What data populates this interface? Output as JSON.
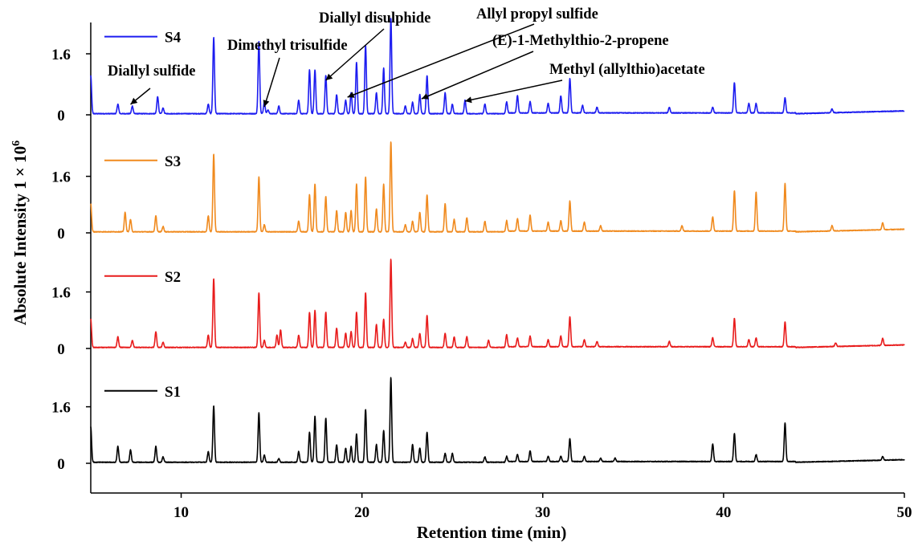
{
  "chart_data": {
    "type": "line",
    "xlabel": "Retention time (min)",
    "ylabel": "Absolute Intensity 1 × 10",
    "ylabel_superscript": "6",
    "xlim": [
      5,
      50
    ],
    "xticks": [
      "10",
      "20",
      "30",
      "40",
      "50"
    ],
    "yticks_per_panel": [
      "0",
      "1.6"
    ],
    "grid": false,
    "legend_placement": "top-left of each panel",
    "colors": {
      "S1": "#000000",
      "S2": "#e81c1c",
      "S3": "#f08a1e",
      "S4": "#1c1cf0"
    },
    "series": [
      {
        "name": "S4",
        "peaks": [
          [
            5.0,
            1.0
          ],
          [
            6.5,
            0.25
          ],
          [
            7.3,
            0.2
          ],
          [
            8.7,
            0.45
          ],
          [
            9.0,
            0.15
          ],
          [
            11.5,
            0.25
          ],
          [
            11.8,
            2.0
          ],
          [
            14.3,
            1.9
          ],
          [
            14.6,
            0.3
          ],
          [
            14.8,
            0.1
          ],
          [
            15.4,
            0.2
          ],
          [
            16.5,
            0.35
          ],
          [
            17.1,
            1.15
          ],
          [
            17.4,
            1.15
          ],
          [
            18.0,
            1.0
          ],
          [
            18.6,
            0.5
          ],
          [
            19.1,
            0.35
          ],
          [
            19.4,
            0.55
          ],
          [
            19.7,
            1.35
          ],
          [
            20.2,
            1.8
          ],
          [
            20.8,
            0.55
          ],
          [
            21.2,
            1.2
          ],
          [
            21.6,
            2.5
          ],
          [
            22.4,
            0.2
          ],
          [
            22.8,
            0.3
          ],
          [
            23.2,
            0.5
          ],
          [
            23.6,
            1.0
          ],
          [
            24.6,
            0.55
          ],
          [
            25.0,
            0.25
          ],
          [
            25.7,
            0.35
          ],
          [
            26.8,
            0.25
          ],
          [
            28.0,
            0.3
          ],
          [
            28.6,
            0.45
          ],
          [
            29.3,
            0.3
          ],
          [
            30.3,
            0.25
          ],
          [
            31.0,
            0.45
          ],
          [
            31.5,
            0.9
          ],
          [
            32.2,
            0.2
          ],
          [
            33.0,
            0.15
          ],
          [
            37.0,
            0.15
          ],
          [
            39.4,
            0.15
          ],
          [
            40.6,
            0.8
          ],
          [
            41.4,
            0.25
          ],
          [
            41.8,
            0.25
          ],
          [
            43.4,
            0.4
          ],
          [
            46.0,
            0.1
          ]
        ]
      },
      {
        "name": "S3",
        "peaks": [
          [
            5.0,
            0.8
          ],
          [
            6.9,
            0.55
          ],
          [
            7.2,
            0.35
          ],
          [
            8.6,
            0.45
          ],
          [
            9.0,
            0.15
          ],
          [
            11.5,
            0.45
          ],
          [
            11.8,
            2.2
          ],
          [
            14.3,
            1.55
          ],
          [
            14.6,
            0.2
          ],
          [
            16.5,
            0.3
          ],
          [
            17.1,
            1.05
          ],
          [
            17.4,
            1.35
          ],
          [
            18.0,
            1.0
          ],
          [
            18.6,
            0.6
          ],
          [
            19.1,
            0.55
          ],
          [
            19.4,
            0.6
          ],
          [
            19.7,
            1.35
          ],
          [
            20.2,
            1.55
          ],
          [
            20.8,
            0.65
          ],
          [
            21.2,
            1.35
          ],
          [
            21.6,
            2.55
          ],
          [
            22.4,
            0.2
          ],
          [
            22.8,
            0.3
          ],
          [
            23.2,
            0.55
          ],
          [
            23.6,
            1.05
          ],
          [
            24.6,
            0.8
          ],
          [
            25.1,
            0.35
          ],
          [
            25.8,
            0.4
          ],
          [
            26.8,
            0.3
          ],
          [
            28.0,
            0.3
          ],
          [
            28.6,
            0.35
          ],
          [
            29.3,
            0.45
          ],
          [
            30.3,
            0.25
          ],
          [
            31.0,
            0.3
          ],
          [
            31.5,
            0.85
          ],
          [
            32.3,
            0.25
          ],
          [
            33.2,
            0.15
          ],
          [
            37.7,
            0.15
          ],
          [
            39.4,
            0.4
          ],
          [
            40.6,
            1.15
          ],
          [
            41.8,
            1.1
          ],
          [
            43.4,
            1.35
          ],
          [
            46.0,
            0.15
          ],
          [
            48.8,
            0.2
          ]
        ]
      },
      {
        "name": "S2",
        "peaks": [
          [
            5.0,
            0.8
          ],
          [
            6.5,
            0.3
          ],
          [
            7.3,
            0.2
          ],
          [
            8.6,
            0.45
          ],
          [
            9.0,
            0.15
          ],
          [
            11.5,
            0.35
          ],
          [
            11.8,
            1.95
          ],
          [
            14.3,
            1.55
          ],
          [
            14.6,
            0.2
          ],
          [
            15.3,
            0.35
          ],
          [
            15.5,
            0.5
          ],
          [
            16.5,
            0.35
          ],
          [
            17.1,
            1.0
          ],
          [
            17.4,
            1.05
          ],
          [
            18.0,
            1.0
          ],
          [
            18.6,
            0.55
          ],
          [
            19.1,
            0.4
          ],
          [
            19.4,
            0.45
          ],
          [
            19.7,
            1.0
          ],
          [
            20.2,
            1.55
          ],
          [
            20.8,
            0.65
          ],
          [
            21.2,
            0.8
          ],
          [
            21.6,
            2.5
          ],
          [
            22.4,
            0.15
          ],
          [
            22.8,
            0.25
          ],
          [
            23.2,
            0.4
          ],
          [
            23.6,
            0.9
          ],
          [
            24.6,
            0.4
          ],
          [
            25.1,
            0.3
          ],
          [
            25.8,
            0.3
          ],
          [
            27.0,
            0.2
          ],
          [
            28.0,
            0.35
          ],
          [
            28.6,
            0.25
          ],
          [
            29.3,
            0.3
          ],
          [
            30.3,
            0.2
          ],
          [
            31.0,
            0.3
          ],
          [
            31.5,
            0.85
          ],
          [
            32.3,
            0.2
          ],
          [
            33.0,
            0.15
          ],
          [
            37.0,
            0.15
          ],
          [
            39.4,
            0.25
          ],
          [
            40.6,
            0.8
          ],
          [
            41.4,
            0.2
          ],
          [
            41.8,
            0.25
          ],
          [
            43.4,
            0.7
          ],
          [
            46.2,
            0.1
          ],
          [
            48.8,
            0.2
          ]
        ]
      },
      {
        "name": "S1",
        "peaks": [
          [
            5.0,
            1.0
          ],
          [
            6.5,
            0.45
          ],
          [
            7.2,
            0.35
          ],
          [
            8.6,
            0.45
          ],
          [
            9.0,
            0.15
          ],
          [
            11.5,
            0.3
          ],
          [
            11.8,
            1.6
          ],
          [
            14.3,
            1.4
          ],
          [
            14.6,
            0.2
          ],
          [
            15.4,
            0.1
          ],
          [
            16.5,
            0.3
          ],
          [
            17.1,
            0.85
          ],
          [
            17.4,
            1.3
          ],
          [
            18.0,
            1.25
          ],
          [
            18.6,
            0.5
          ],
          [
            19.1,
            0.4
          ],
          [
            19.4,
            0.45
          ],
          [
            19.7,
            0.8
          ],
          [
            20.2,
            1.5
          ],
          [
            20.8,
            0.5
          ],
          [
            21.2,
            0.9
          ],
          [
            21.6,
            2.4
          ],
          [
            22.8,
            0.5
          ],
          [
            23.2,
            0.4
          ],
          [
            23.6,
            0.85
          ],
          [
            24.6,
            0.25
          ],
          [
            25.0,
            0.25
          ],
          [
            26.8,
            0.15
          ],
          [
            28.0,
            0.15
          ],
          [
            28.6,
            0.2
          ],
          [
            29.3,
            0.3
          ],
          [
            30.3,
            0.15
          ],
          [
            31.0,
            0.15
          ],
          [
            31.5,
            0.65
          ],
          [
            32.3,
            0.15
          ],
          [
            33.2,
            0.1
          ],
          [
            34.0,
            0.1
          ],
          [
            39.4,
            0.5
          ],
          [
            40.6,
            0.8
          ],
          [
            41.8,
            0.2
          ],
          [
            43.4,
            1.1
          ],
          [
            48.8,
            0.1
          ]
        ]
      }
    ],
    "annotations": [
      {
        "text": "Diallyl sulfide",
        "x": 7.2
      },
      {
        "text": "Dimethyl trisulfide",
        "x": 14.6
      },
      {
        "text": "Diallyl disulphide",
        "x": 18.0
      },
      {
        "text": "Allyl propyl sulfide",
        "x": 19.2
      },
      {
        "text": "(E)-1-Methylthio-2-propene",
        "x": 23.3
      },
      {
        "text": "Methyl (allylthio)acetate",
        "x": 25.7
      }
    ]
  }
}
